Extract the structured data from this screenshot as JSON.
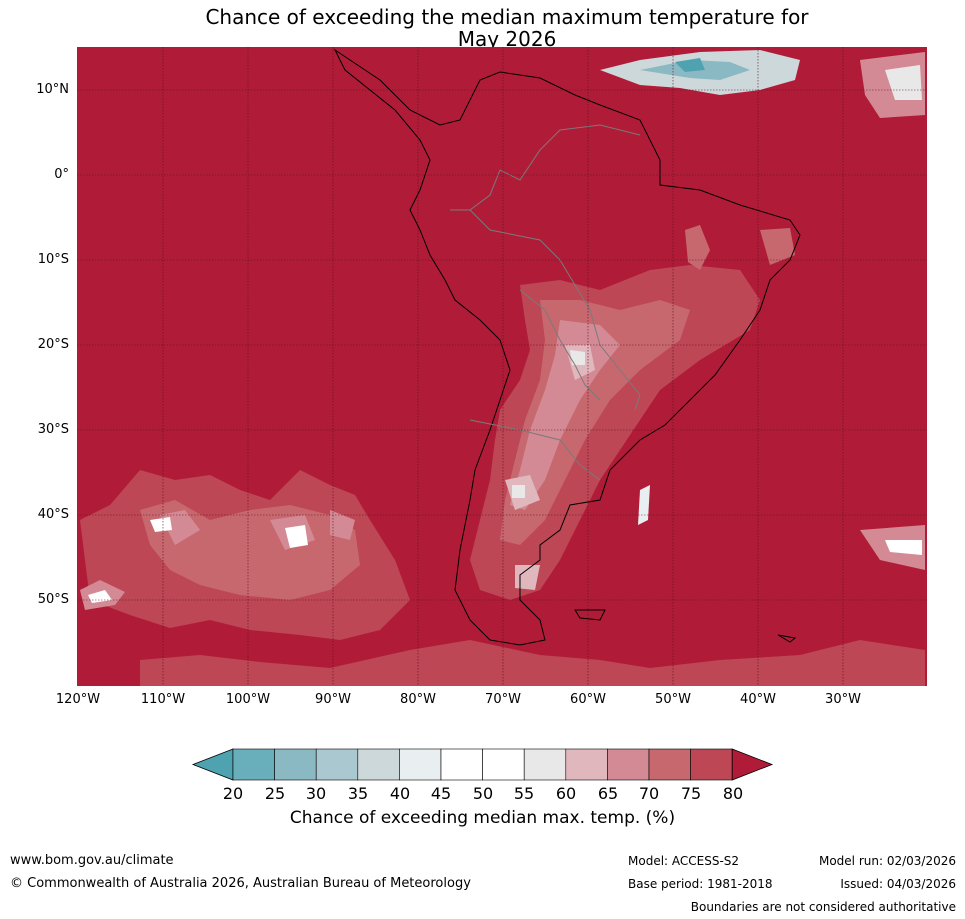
{
  "title": {
    "line1": "Chance of exceeding the median maximum temperature for",
    "line2": "May 2026"
  },
  "map": {
    "lat_labels": [
      "10°N",
      "0°",
      "10°S",
      "20°S",
      "30°S",
      "40°S",
      "50°S"
    ],
    "lon_labels": [
      "120°W",
      "110°W",
      "100°W",
      "90°W",
      "80°W",
      "70°W",
      "60°W",
      "50°W",
      "40°W",
      "30°W"
    ],
    "background_color": "#b01c38"
  },
  "colorbar": {
    "ticks": [
      "20",
      "25",
      "30",
      "35",
      "40",
      "45",
      "50",
      "55",
      "60",
      "65",
      "70",
      "75",
      "80"
    ],
    "colors": [
      "#4fa3b1",
      "#69aebb",
      "#8ab9c4",
      "#a9c8cf",
      "#cdd8db",
      "#e9eff1",
      "#ffffff",
      "#ffffff",
      "#e8e8e8",
      "#e0b7bd",
      "#d48a94",
      "#c7686f",
      "#bd4755",
      "#b01c38"
    ],
    "label": "Chance of exceeding median max. temp. (%)"
  },
  "footer": {
    "website": "www.bom.gov.au/climate",
    "copyright": "© Commonwealth of Australia 2026, Australian Bureau of Meteorology",
    "model": "Model: ACCESS-S2",
    "model_run": "Model run: 02/03/2026",
    "base_period": "Base period: 1981-2018",
    "issued": "Issued: 04/03/2026",
    "disclaimer": "Boundaries are not considered authoritative"
  }
}
